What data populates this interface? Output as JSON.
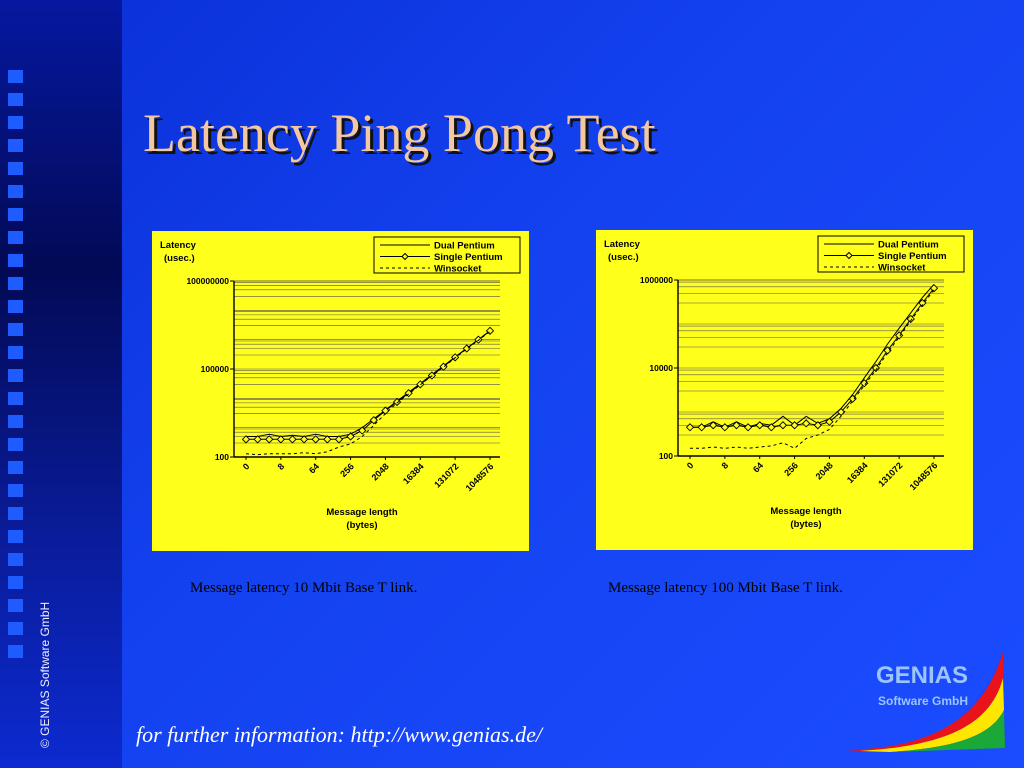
{
  "slide": {
    "title": "Latency Ping Pong Test",
    "footer": "for further information: http://www.genias.de/",
    "side_text": "© GENIAS Software GmbH",
    "logo_name": "GENIAS",
    "logo_sub": "Software GmbH"
  },
  "captions": [
    "Message latency 10 Mbit Base T link.",
    "Message latency 100 Mbit Base T link."
  ],
  "colors": {
    "background": "#1442f0",
    "chart_bg": "#ffff1c",
    "title": "#f3c8a0"
  },
  "chart_data": [
    {
      "type": "line",
      "ylabel": [
        "Latency",
        "(usec.)"
      ],
      "xlabel": [
        "Message length",
        "(bytes)"
      ],
      "yscale": "log",
      "ylim": [
        100,
        100000000
      ],
      "yticks": [
        100,
        100000,
        100000000
      ],
      "ytick_labels": [
        "100",
        "100000",
        "100000000"
      ],
      "xtick_labels": [
        "0",
        "8",
        "64",
        "256",
        "2048",
        "16384",
        "131072",
        "1048576"
      ],
      "xtick_indices": [
        0,
        3,
        6,
        9,
        12,
        15,
        18,
        21
      ],
      "grid": true,
      "legend": "top-right",
      "series": [
        {
          "name": "Dual Pentium",
          "style": "solid",
          "values": [
            500,
            500,
            600,
            500,
            550,
            500,
            600,
            500,
            500,
            600,
            1000,
            2000,
            4000,
            8000,
            16000,
            32000,
            64000,
            128000,
            256000,
            512000,
            1000000,
            2000000
          ]
        },
        {
          "name": "Single Pentium",
          "style": "solid-diamond",
          "values": [
            400,
            400,
            400,
            400,
            400,
            400,
            400,
            400,
            400,
            500,
            800,
            1800,
            3800,
            7500,
            15000,
            30000,
            60000,
            120000,
            250000,
            500000,
            1000000,
            2000000
          ]
        },
        {
          "name": "Winsocket",
          "style": "dashed",
          "values": [
            130,
            120,
            130,
            130,
            130,
            140,
            130,
            150,
            220,
            280,
            500,
            1200,
            3000,
            7000,
            14000,
            29000,
            58000,
            115000,
            240000,
            480000,
            950000,
            1900000
          ]
        }
      ]
    },
    {
      "type": "line",
      "ylabel": [
        "Latency",
        "(usec.)"
      ],
      "xlabel": [
        "Message length",
        "(bytes)"
      ],
      "yscale": "log",
      "ylim": [
        100,
        1000000
      ],
      "yticks": [
        100,
        10000,
        1000000
      ],
      "ytick_labels": [
        "100",
        "10000",
        "1000000"
      ],
      "xtick_labels": [
        "0",
        "8",
        "64",
        "256",
        "2048",
        "16384",
        "131072",
        "1048576"
      ],
      "xtick_indices": [
        0,
        3,
        6,
        9,
        12,
        15,
        18,
        21
      ],
      "grid": true,
      "legend": "top-right",
      "series": [
        {
          "name": "Dual Pentium",
          "style": "solid",
          "values": [
            450,
            450,
            600,
            450,
            600,
            450,
            550,
            500,
            800,
            500,
            800,
            550,
            700,
            1200,
            2500,
            6000,
            14000,
            35000,
            80000,
            180000,
            400000,
            800000
          ]
        },
        {
          "name": "Single Pentium",
          "style": "solid-diamond",
          "values": [
            450,
            450,
            500,
            450,
            500,
            450,
            500,
            450,
            500,
            500,
            550,
            500,
            600,
            1000,
            2000,
            4500,
            10000,
            25000,
            55000,
            130000,
            300000,
            650000
          ]
        },
        {
          "name": "Winsocket",
          "style": "dashed",
          "values": [
            150,
            150,
            160,
            150,
            160,
            150,
            160,
            170,
            200,
            150,
            250,
            300,
            400,
            800,
            1800,
            4000,
            9000,
            22000,
            50000,
            120000,
            270000,
            600000
          ]
        }
      ]
    }
  ]
}
